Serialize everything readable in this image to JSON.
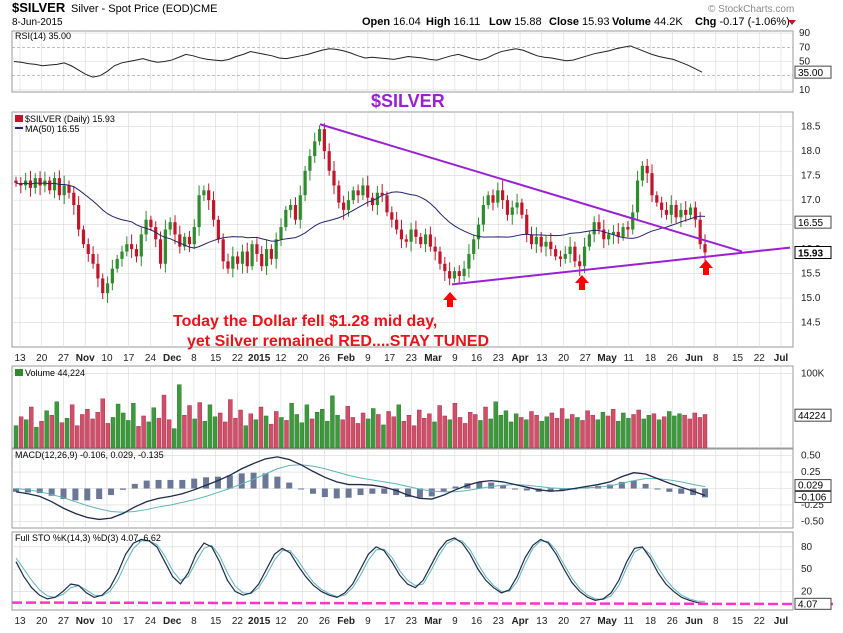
{
  "header": {
    "symbol": "$SILVER",
    "name": "Silver - Spot Price (EOD)",
    "exchange": "CME",
    "date": "8-Jun-2015",
    "brand": "© StockCharts.com",
    "ohlc": [
      {
        "label": "Open",
        "value": "16.04"
      },
      {
        "label": "High",
        "value": "16.11"
      },
      {
        "label": "Low",
        "value": "15.88"
      },
      {
        "label": "Close",
        "value": "15.93"
      },
      {
        "label": "Volume",
        "value": "44.2K"
      },
      {
        "label": "Chg",
        "value": "-0.17 (-1.06%)"
      }
    ]
  },
  "annotations": {
    "big_title": "$SILVER",
    "line1": "Today the Dollar fell $1.28 mid day,",
    "line2": "yet Silver remained RED....STAY TUNED"
  },
  "colors": {
    "up": "#2e8b2e",
    "down": "#c0162c",
    "trend": "#9b1fd6",
    "ma": "#24246b",
    "arrow": "#ff0000",
    "grid": "#d8d8d8",
    "pink_line": "#ff33cc"
  },
  "x_axis": {
    "ticks": [
      "13",
      "20",
      "27",
      "Nov",
      "10",
      "17",
      "24",
      "Dec",
      "8",
      "15",
      "22",
      "2015",
      "12",
      "20",
      "26",
      "Feb",
      "9",
      "17",
      "23",
      "Mar",
      "9",
      "16",
      "23",
      "Apr",
      "13",
      "20",
      "27",
      "May",
      "11",
      "18",
      "26",
      "Jun",
      "8",
      "15",
      "22",
      "Jul"
    ],
    "bold": [
      "Nov",
      "Dec",
      "2015",
      "Feb",
      "Mar",
      "Apr",
      "May",
      "Jun",
      "Jul"
    ]
  },
  "chart_data": [
    {
      "type": "line",
      "panel": "RSI",
      "label": "RSI(14) 35.00",
      "y_ticks": [
        10,
        30,
        50,
        70,
        90
      ],
      "last_value": "35.00",
      "values": [
        50,
        49,
        47,
        46,
        44,
        45,
        46,
        48,
        44,
        38,
        32,
        28,
        30,
        36,
        44,
        48,
        50,
        52,
        54,
        51,
        49,
        50,
        52,
        56,
        60,
        58,
        55,
        53,
        52,
        51,
        53,
        57,
        60,
        64,
        62,
        60,
        58,
        55,
        54,
        56,
        58,
        60,
        63,
        66,
        68,
        67,
        65,
        62,
        58,
        55,
        56,
        55,
        54,
        53,
        55,
        57,
        56,
        55,
        53,
        52,
        55,
        58,
        60,
        57,
        54,
        52,
        55,
        60,
        64,
        66,
        68,
        66,
        62,
        58,
        56,
        55,
        53,
        51,
        52,
        55,
        58,
        61,
        63,
        65,
        68,
        70,
        72,
        68,
        64,
        60,
        57,
        55,
        53,
        49,
        45,
        40,
        35
      ]
    },
    {
      "type": "candlestick",
      "panel": "Price",
      "label": "$SILVER (Daily) 15.93",
      "ma_label": "MA(50) 16.55",
      "y_ticks": [
        14.5,
        15.0,
        15.5,
        16.0,
        16.5,
        17.0,
        17.5,
        18.0,
        18.5
      ],
      "y_range": [
        14.0,
        18.8
      ],
      "last_value": "15.93",
      "ma_value": "16.55",
      "close": [
        17.35,
        17.3,
        17.4,
        17.25,
        17.45,
        17.3,
        17.4,
        17.2,
        17.45,
        17.1,
        17.3,
        17.15,
        16.9,
        16.4,
        16.1,
        15.9,
        15.7,
        15.4,
        15.1,
        15.3,
        15.6,
        15.8,
        15.95,
        16.1,
        16.0,
        15.85,
        16.3,
        16.6,
        16.45,
        16.2,
        15.7,
        16.4,
        16.55,
        16.3,
        16.05,
        16.25,
        16.1,
        16.45,
        17.1,
        17.2,
        17.0,
        16.6,
        16.2,
        15.75,
        15.6,
        15.85,
        15.7,
        15.95,
        15.65,
        16.1,
        15.9,
        15.65,
        16.0,
        15.8,
        16.2,
        16.45,
        16.8,
        16.9,
        16.6,
        17.1,
        17.6,
        17.9,
        18.2,
        18.45,
        18.0,
        17.6,
        17.3,
        16.95,
        16.8,
        17.0,
        17.2,
        17.1,
        17.3,
        17.05,
        16.9,
        17.15,
        17.1,
        16.75,
        16.6,
        16.4,
        16.2,
        16.15,
        16.4,
        16.25,
        16.1,
        16.3,
        16.05,
        15.95,
        15.7,
        15.55,
        15.4,
        15.55,
        15.45,
        15.6,
        15.9,
        16.2,
        16.5,
        16.9,
        17.1,
        16.95,
        17.2,
        17.0,
        16.7,
        16.85,
        16.95,
        16.7,
        16.3,
        16.1,
        16.25,
        16.05,
        16.15,
        16.0,
        15.85,
        15.8,
        15.9,
        16.05,
        15.75,
        15.65,
        16.05,
        16.3,
        16.55,
        16.4,
        16.2,
        16.3,
        16.35,
        16.25,
        16.45,
        16.4,
        16.75,
        17.4,
        17.7,
        17.55,
        17.1,
        16.95,
        16.8,
        16.7,
        16.9,
        16.65,
        16.8,
        16.7,
        16.85,
        16.6,
        16.1,
        15.93
      ]
    },
    {
      "type": "bar",
      "panel": "Volume",
      "label": "Volume 44,224",
      "y_ticks": [
        "100K"
      ],
      "last_value": "44224",
      "values": [
        30,
        42,
        38,
        55,
        28,
        36,
        50,
        44,
        62,
        34,
        40,
        58,
        30,
        45,
        52,
        39,
        48,
        66,
        33,
        41,
        59,
        47,
        37,
        60,
        29,
        43,
        35,
        54,
        40,
        71,
        38,
        26,
        85,
        44,
        57,
        39,
        61,
        36,
        58,
        42,
        47,
        35,
        65,
        40,
        51,
        30,
        46,
        38,
        55,
        43,
        32,
        49,
        41,
        37,
        60,
        45,
        34,
        58,
        39,
        48,
        52,
        36,
        70,
        44,
        38,
        56,
        41,
        33,
        47,
        39,
        53,
        45,
        31,
        49,
        42,
        58,
        36,
        44,
        30,
        51,
        40,
        46,
        35,
        57,
        43,
        38,
        60,
        41,
        33,
        48,
        45,
        37,
        55,
        39,
        62,
        44,
        50,
        35,
        46,
        41,
        38,
        49,
        44,
        36,
        42,
        47,
        40,
        53,
        39,
        45,
        41,
        37,
        50,
        44,
        38,
        48,
        43,
        52,
        36,
        47,
        40,
        45,
        51,
        39,
        44,
        46,
        38,
        42,
        49,
        43,
        46,
        44,
        39,
        47,
        41,
        45
      ]
    },
    {
      "type": "line",
      "panel": "MACD",
      "label": "MACD(12,26,9) -0.106, 0.029, -0.135",
      "y_ticks": [
        0.5,
        0.25,
        0.0,
        -0.25,
        -0.5
      ],
      "last_values": [
        "0.029",
        "-0.106"
      ],
      "series": [
        {
          "name": "MACD",
          "values": [
            -0.05,
            -0.08,
            -0.12,
            -0.2,
            -0.3,
            -0.38,
            -0.44,
            -0.47,
            -0.45,
            -0.38,
            -0.28,
            -0.2,
            -0.15,
            -0.12,
            -0.08,
            -0.02,
            0.05,
            0.12,
            0.2,
            0.3,
            0.38,
            0.45,
            0.48,
            0.44,
            0.36,
            0.26,
            0.17,
            0.1,
            0.06,
            0.06,
            0.05,
            0.02,
            -0.03,
            -0.1,
            -0.15,
            -0.16,
            -0.1,
            -0.02,
            0.05,
            0.1,
            0.12,
            0.1,
            0.06,
            0.02,
            -0.02,
            -0.04,
            -0.03,
            0.0,
            0.03,
            0.06,
            0.1,
            0.18,
            0.24,
            0.22,
            0.15,
            0.08,
            0.02,
            -0.04,
            -0.106
          ]
        },
        {
          "name": "Signal",
          "values": [
            0.0,
            -0.02,
            -0.05,
            -0.09,
            -0.14,
            -0.2,
            -0.26,
            -0.31,
            -0.35,
            -0.36,
            -0.35,
            -0.32,
            -0.28,
            -0.25,
            -0.21,
            -0.17,
            -0.12,
            -0.06,
            0.0,
            0.07,
            0.14,
            0.22,
            0.3,
            0.35,
            0.36,
            0.34,
            0.3,
            0.25,
            0.2,
            0.16,
            0.13,
            0.1,
            0.07,
            0.03,
            -0.01,
            -0.04,
            -0.05,
            -0.05,
            -0.03,
            0.0,
            0.03,
            0.05,
            0.06,
            0.05,
            0.03,
            0.01,
            0.0,
            0.0,
            0.01,
            0.02,
            0.04,
            0.08,
            0.12,
            0.15,
            0.15,
            0.13,
            0.1,
            0.06,
            0.029
          ]
        }
      ]
    },
    {
      "type": "line",
      "panel": "Full STO",
      "label": "Full STO %K(14,3) %D(3) 4.07, 6.62",
      "y_ticks": [
        20,
        50,
        80
      ],
      "last_value": "4.07",
      "series": [
        {
          "name": "%K",
          "values": [
            60,
            40,
            25,
            15,
            10,
            12,
            20,
            30,
            28,
            18,
            12,
            15,
            25,
            45,
            70,
            85,
            90,
            88,
            80,
            60,
            40,
            30,
            45,
            70,
            85,
            80,
            60,
            35,
            20,
            15,
            18,
            30,
            50,
            70,
            78,
            72,
            55,
            40,
            28,
            20,
            15,
            12,
            18,
            30,
            50,
            70,
            80,
            75,
            60,
            42,
            30,
            25,
            35,
            55,
            75,
            88,
            92,
            85,
            70,
            50,
            35,
            25,
            18,
            22,
            40,
            65,
            82,
            90,
            85,
            70,
            50,
            32,
            20,
            12,
            8,
            10,
            18,
            35,
            60,
            78,
            80,
            65,
            45,
            30,
            20,
            12,
            8,
            5,
            4.07
          ]
        },
        {
          "name": "%D",
          "values": [
            65,
            50,
            35,
            22,
            14,
            12,
            16,
            25,
            28,
            22,
            15,
            14,
            20,
            35,
            58,
            78,
            88,
            88,
            83,
            68,
            48,
            35,
            40,
            60,
            78,
            82,
            68,
            45,
            27,
            18,
            17,
            25,
            42,
            62,
            75,
            75,
            62,
            46,
            32,
            23,
            17,
            13,
            15,
            25,
            42,
            62,
            76,
            77,
            66,
            48,
            35,
            28,
            30,
            48,
            68,
            84,
            90,
            88,
            76,
            57,
            40,
            28,
            20,
            20,
            33,
            57,
            78,
            88,
            87,
            75,
            56,
            38,
            24,
            15,
            10,
            9,
            14,
            28,
            52,
            73,
            79,
            70,
            52,
            36,
            24,
            15,
            10,
            7,
            6.62
          ]
        }
      ]
    }
  ]
}
